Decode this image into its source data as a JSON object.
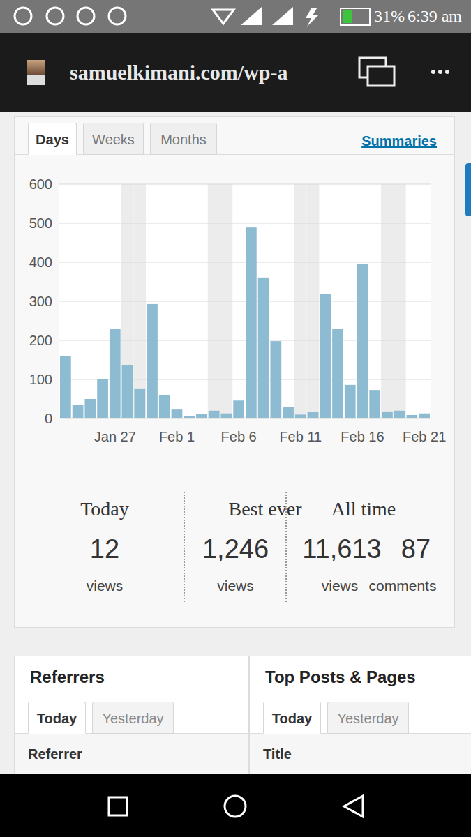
{
  "status_bar": {
    "battery": "31%",
    "time": "6:39 am"
  },
  "browser": {
    "url": "samuelkimani.com/wp-a"
  },
  "tabs": [
    "Days",
    "Weeks",
    "Months"
  ],
  "summaries_link": "Summaries",
  "chart_data": {
    "type": "bar",
    "categories": [
      null,
      null,
      null,
      null,
      "Jan 27",
      null,
      null,
      null,
      null,
      "Feb 1",
      null,
      null,
      null,
      null,
      "Feb 6",
      null,
      null,
      null,
      null,
      "Feb 11",
      null,
      null,
      null,
      null,
      "Feb 16",
      null,
      null,
      null,
      null,
      "Feb 21"
    ],
    "values": [
      160,
      34,
      50,
      100,
      229,
      137,
      77,
      293,
      59,
      23,
      7,
      11,
      20,
      13,
      46,
      489,
      361,
      198,
      29,
      10,
      16,
      318,
      229,
      86,
      396,
      73,
      18,
      20,
      9,
      13
    ],
    "color": "#8dbbd2",
    "ylim": [
      0,
      600
    ],
    "yticks": [
      0,
      100,
      200,
      300,
      400,
      500,
      600
    ],
    "grid": true
  },
  "stats": {
    "today": {
      "label": "Today",
      "value": "12",
      "unit": "views"
    },
    "best_ever": {
      "label": "Best ever",
      "value": "1,246",
      "unit": "views"
    },
    "all_time": {
      "label": "All time",
      "views": "11,613",
      "views_unit": "views",
      "comments": "87",
      "comments_unit": "comments"
    }
  },
  "panels": [
    {
      "title": "Referrers",
      "tabs": [
        "Today",
        "Yesterday"
      ],
      "column": "Referrer"
    },
    {
      "title": "Top Posts & Pages",
      "tabs": [
        "Today",
        "Yesterday"
      ],
      "column": "Title"
    }
  ]
}
